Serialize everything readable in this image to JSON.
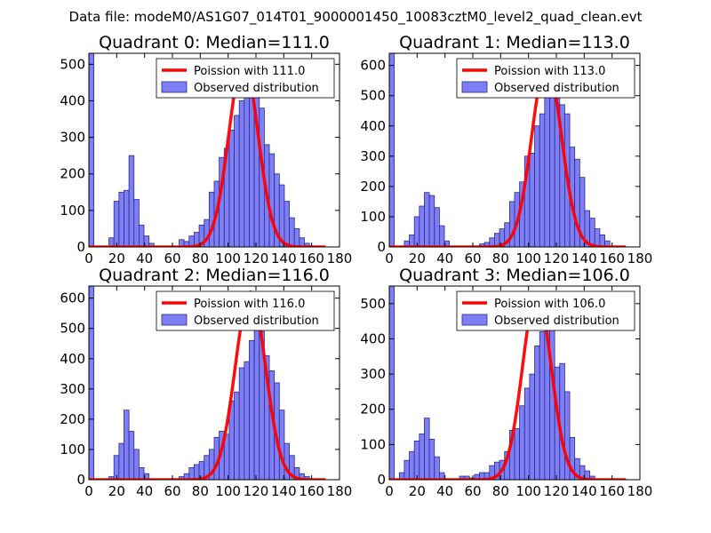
{
  "suptitle": "Data file: modeM0/AS1G07_014T01_9000001450_10083cztM0_level2_quad_clean.evt",
  "colors": {
    "bar_fill": "#7f7ff5",
    "bar_edge": "#2a2a8a",
    "curve": "#ff0000",
    "axis": "#000000",
    "background": "#ffffff"
  },
  "chart_data": [
    {
      "type": "bar",
      "title": "Quadrant 0: Median=111.0",
      "xlim": [
        0,
        180
      ],
      "ylim": [
        0,
        530
      ],
      "xticks": [
        0,
        20,
        40,
        60,
        80,
        100,
        120,
        140,
        160,
        180
      ],
      "yticks": [
        0,
        100,
        200,
        300,
        400,
        500
      ],
      "bin_width": 3.6,
      "legend": {
        "position": "upper-right",
        "entries": [
          "Poission with 111.0",
          "Observed distribution"
        ]
      },
      "bars": [
        {
          "x": 0,
          "y": 530
        },
        {
          "x": 14.4,
          "y": 25
        },
        {
          "x": 18,
          "y": 125
        },
        {
          "x": 21.6,
          "y": 150
        },
        {
          "x": 25.2,
          "y": 155
        },
        {
          "x": 28.8,
          "y": 250
        },
        {
          "x": 32.4,
          "y": 130
        },
        {
          "x": 36,
          "y": 60
        },
        {
          "x": 39.6,
          "y": 30
        },
        {
          "x": 43.2,
          "y": 10
        },
        {
          "x": 64.8,
          "y": 20
        },
        {
          "x": 68.4,
          "y": 15
        },
        {
          "x": 72,
          "y": 30
        },
        {
          "x": 75.6,
          "y": 40
        },
        {
          "x": 79.2,
          "y": 60
        },
        {
          "x": 82.8,
          "y": 75
        },
        {
          "x": 86.4,
          "y": 150
        },
        {
          "x": 90,
          "y": 180
        },
        {
          "x": 93.6,
          "y": 245
        },
        {
          "x": 97.2,
          "y": 270
        },
        {
          "x": 100.8,
          "y": 320
        },
        {
          "x": 104.4,
          "y": 360
        },
        {
          "x": 108,
          "y": 400
        },
        {
          "x": 111.6,
          "y": 430
        },
        {
          "x": 115.2,
          "y": 470
        },
        {
          "x": 118.8,
          "y": 430
        },
        {
          "x": 122.4,
          "y": 380
        },
        {
          "x": 126,
          "y": 280
        },
        {
          "x": 129.6,
          "y": 255
        },
        {
          "x": 133.2,
          "y": 200
        },
        {
          "x": 136.8,
          "y": 170
        },
        {
          "x": 140.4,
          "y": 125
        },
        {
          "x": 144,
          "y": 80
        },
        {
          "x": 147.6,
          "y": 50
        },
        {
          "x": 151.2,
          "y": 25
        },
        {
          "x": 154.8,
          "y": 10
        }
      ],
      "poisson": {
        "mean": 111.0,
        "peak": 510,
        "sigma": 10.5
      }
    },
    {
      "type": "bar",
      "title": "Quadrant 1: Median=113.0",
      "xlim": [
        0,
        180
      ],
      "ylim": [
        0,
        640
      ],
      "xticks": [
        0,
        20,
        40,
        60,
        80,
        100,
        120,
        140,
        160,
        180
      ],
      "yticks": [
        0,
        100,
        200,
        300,
        400,
        500,
        600
      ],
      "bin_width": 3.6,
      "legend": {
        "position": "upper-right",
        "entries": [
          "Poission with 113.0",
          "Observed distribution"
        ]
      },
      "bars": [
        {
          "x": 0,
          "y": 640
        },
        {
          "x": 10.8,
          "y": 20
        },
        {
          "x": 14.4,
          "y": 40
        },
        {
          "x": 18,
          "y": 100
        },
        {
          "x": 21.6,
          "y": 135
        },
        {
          "x": 25.2,
          "y": 180
        },
        {
          "x": 28.8,
          "y": 170
        },
        {
          "x": 32.4,
          "y": 130
        },
        {
          "x": 36,
          "y": 70
        },
        {
          "x": 39.6,
          "y": 20
        },
        {
          "x": 64.8,
          "y": 10
        },
        {
          "x": 68.4,
          "y": 15
        },
        {
          "x": 72,
          "y": 30
        },
        {
          "x": 75.6,
          "y": 45
        },
        {
          "x": 79.2,
          "y": 60
        },
        {
          "x": 82.8,
          "y": 80
        },
        {
          "x": 86.4,
          "y": 150
        },
        {
          "x": 90,
          "y": 180
        },
        {
          "x": 93.6,
          "y": 215
        },
        {
          "x": 97.2,
          "y": 300
        },
        {
          "x": 100.8,
          "y": 310
        },
        {
          "x": 104.4,
          "y": 400
        },
        {
          "x": 108,
          "y": 440
        },
        {
          "x": 111.6,
          "y": 500
        },
        {
          "x": 115.2,
          "y": 560
        },
        {
          "x": 118.8,
          "y": 520
        },
        {
          "x": 122.4,
          "y": 470
        },
        {
          "x": 126,
          "y": 440
        },
        {
          "x": 129.6,
          "y": 330
        },
        {
          "x": 133.2,
          "y": 290
        },
        {
          "x": 136.8,
          "y": 230
        },
        {
          "x": 140.4,
          "y": 120
        },
        {
          "x": 144,
          "y": 95
        },
        {
          "x": 147.6,
          "y": 60
        },
        {
          "x": 151.2,
          "y": 40
        },
        {
          "x": 154.8,
          "y": 20
        }
      ],
      "poisson": {
        "mean": 113.0,
        "peak": 610,
        "sigma": 10.6
      }
    },
    {
      "type": "bar",
      "title": "Quadrant 2: Median=116.0",
      "xlim": [
        0,
        180
      ],
      "ylim": [
        0,
        640
      ],
      "xticks": [
        0,
        20,
        40,
        60,
        80,
        100,
        120,
        140,
        160,
        180
      ],
      "yticks": [
        0,
        100,
        200,
        300,
        400,
        500,
        600
      ],
      "bin_width": 3.6,
      "legend": {
        "position": "upper-right",
        "entries": [
          "Poission with 116.0",
          "Observed distribution"
        ]
      },
      "bars": [
        {
          "x": 0,
          "y": 640
        },
        {
          "x": 14.4,
          "y": 10
        },
        {
          "x": 18,
          "y": 80
        },
        {
          "x": 21.6,
          "y": 120
        },
        {
          "x": 25.2,
          "y": 230
        },
        {
          "x": 28.8,
          "y": 160
        },
        {
          "x": 32.4,
          "y": 100
        },
        {
          "x": 36,
          "y": 40
        },
        {
          "x": 39.6,
          "y": 20
        },
        {
          "x": 64.8,
          "y": 10
        },
        {
          "x": 68.4,
          "y": 20
        },
        {
          "x": 72,
          "y": 40
        },
        {
          "x": 75.6,
          "y": 50
        },
        {
          "x": 79.2,
          "y": 60
        },
        {
          "x": 82.8,
          "y": 80
        },
        {
          "x": 86.4,
          "y": 100
        },
        {
          "x": 90,
          "y": 140
        },
        {
          "x": 93.6,
          "y": 160
        },
        {
          "x": 97.2,
          "y": 150
        },
        {
          "x": 100.8,
          "y": 260
        },
        {
          "x": 104.4,
          "y": 290
        },
        {
          "x": 108,
          "y": 370
        },
        {
          "x": 111.6,
          "y": 390
        },
        {
          "x": 115.2,
          "y": 460
        },
        {
          "x": 118.8,
          "y": 500
        },
        {
          "x": 122.4,
          "y": 490
        },
        {
          "x": 126,
          "y": 410
        },
        {
          "x": 129.6,
          "y": 360
        },
        {
          "x": 133.2,
          "y": 320
        },
        {
          "x": 136.8,
          "y": 230
        },
        {
          "x": 140.4,
          "y": 120
        },
        {
          "x": 144,
          "y": 80
        },
        {
          "x": 147.6,
          "y": 40
        },
        {
          "x": 151.2,
          "y": 20
        },
        {
          "x": 154.8,
          "y": 10
        }
      ],
      "poisson": {
        "mean": 116.0,
        "peak": 620,
        "sigma": 10.8
      }
    },
    {
      "type": "bar",
      "title": "Quadrant 3: Median=106.0",
      "xlim": [
        0,
        180
      ],
      "ylim": [
        0,
        550
      ],
      "xticks": [
        0,
        20,
        40,
        60,
        80,
        100,
        120,
        140,
        160,
        180
      ],
      "yticks": [
        0,
        100,
        200,
        300,
        400,
        500
      ],
      "bin_width": 3.6,
      "legend": {
        "position": "upper-right",
        "entries": [
          "Poission with 106.0",
          "Observed distribution"
        ]
      },
      "bars": [
        {
          "x": 0,
          "y": 550
        },
        {
          "x": 7.2,
          "y": 20
        },
        {
          "x": 10.8,
          "y": 55
        },
        {
          "x": 14.4,
          "y": 80
        },
        {
          "x": 18,
          "y": 110
        },
        {
          "x": 21.6,
          "y": 130
        },
        {
          "x": 25.2,
          "y": 175
        },
        {
          "x": 28.8,
          "y": 115
        },
        {
          "x": 32.4,
          "y": 65
        },
        {
          "x": 36,
          "y": 20
        },
        {
          "x": 50.4,
          "y": 10
        },
        {
          "x": 54,
          "y": 10
        },
        {
          "x": 57.6,
          "y": 5
        },
        {
          "x": 61.2,
          "y": 15
        },
        {
          "x": 64.8,
          "y": 20
        },
        {
          "x": 68.4,
          "y": 20
        },
        {
          "x": 72,
          "y": 40
        },
        {
          "x": 75.6,
          "y": 50
        },
        {
          "x": 79.2,
          "y": 55
        },
        {
          "x": 82.8,
          "y": 80
        },
        {
          "x": 86.4,
          "y": 140
        },
        {
          "x": 90,
          "y": 145
        },
        {
          "x": 93.6,
          "y": 210
        },
        {
          "x": 97.2,
          "y": 260
        },
        {
          "x": 100.8,
          "y": 300
        },
        {
          "x": 104.4,
          "y": 380
        },
        {
          "x": 108,
          "y": 420
        },
        {
          "x": 111.6,
          "y": 530
        },
        {
          "x": 115.2,
          "y": 480
        },
        {
          "x": 118.8,
          "y": 320
        },
        {
          "x": 122.4,
          "y": 330
        },
        {
          "x": 126,
          "y": 250
        },
        {
          "x": 129.6,
          "y": 120
        },
        {
          "x": 133.2,
          "y": 60
        },
        {
          "x": 136.8,
          "y": 40
        },
        {
          "x": 140.4,
          "y": 25
        },
        {
          "x": 144,
          "y": 10
        }
      ],
      "poisson": {
        "mean": 106.0,
        "peak": 530,
        "sigma": 10.3
      }
    }
  ]
}
